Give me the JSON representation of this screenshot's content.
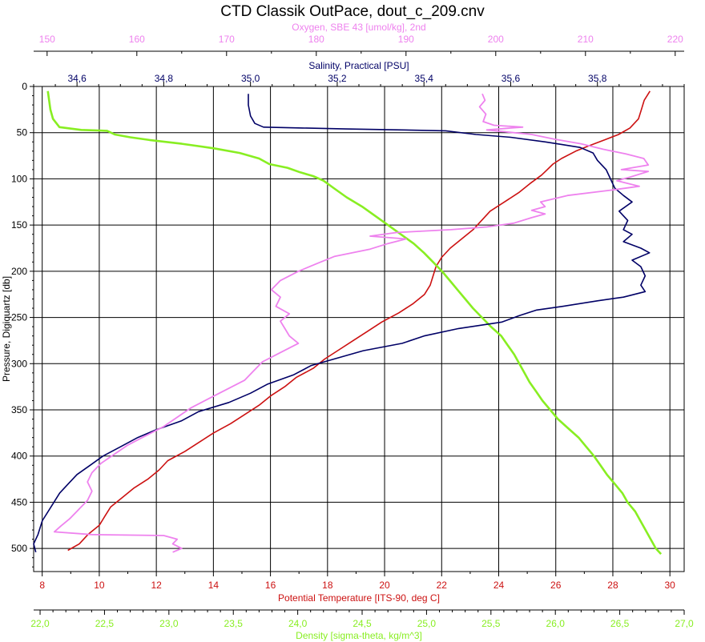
{
  "chart_data": {
    "type": "line",
    "title": "CTD Classik OutPace, dout_c_209.cnv",
    "grid": true,
    "colors": {
      "pressure": "#000000",
      "temperature": "#cc1111",
      "salinity": "#000066",
      "oxygen": "#ee82ee",
      "density": "#88ee22"
    },
    "axes": {
      "pressure": {
        "label": "Pressure, Digiquartz [db]",
        "range": [
          0,
          525
        ],
        "inverted": true,
        "ticks": [
          0,
          50,
          100,
          150,
          200,
          250,
          300,
          350,
          400,
          450,
          500
        ],
        "tick_labels": [
          "0",
          "50",
          "100",
          "150",
          "200",
          "250",
          "300",
          "350",
          "400",
          "450",
          "500"
        ]
      },
      "temperature": {
        "label": "Potential Temperature [ITS-90, deg C]",
        "range": [
          7.7,
          30.5
        ],
        "ticks": [
          8,
          10,
          12,
          14,
          16,
          18,
          20,
          22,
          24,
          26,
          28,
          30
        ],
        "tick_labels": [
          "8",
          "10",
          "12",
          "14",
          "16",
          "18",
          "20",
          "22",
          "24",
          "26",
          "28",
          "30"
        ]
      },
      "density": {
        "label": "Density [sigma-theta, kg/m^3]",
        "range": [
          21.95,
          27.0
        ],
        "ticks": [
          22.0,
          22.5,
          23.0,
          23.5,
          24.0,
          24.5,
          25.0,
          25.5,
          26.0,
          26.5,
          27.0
        ],
        "tick_labels": [
          "22,0",
          "22,5",
          "23,0",
          "23,5",
          "24,0",
          "24,5",
          "25,0",
          "25,5",
          "26,0",
          "26,5",
          "27,0"
        ]
      },
      "salinity": {
        "label": "Salinity, Practical [PSU]",
        "range": [
          34.5,
          36.0
        ],
        "ticks": [
          34.6,
          34.8,
          35.0,
          35.2,
          35.4,
          35.6,
          35.8
        ],
        "tick_labels": [
          "34,6",
          "34,8",
          "35,0",
          "35,2",
          "35,4",
          "35,6",
          "35,8"
        ]
      },
      "oxygen": {
        "label": "Oxygen, SBE 43 [umol/kg], 2nd",
        "range": [
          148.5,
          221.0
        ],
        "ticks": [
          150,
          160,
          170,
          180,
          190,
          200,
          210,
          220
        ],
        "tick_labels": [
          "150",
          "160",
          "170",
          "180",
          "190",
          "200",
          "210",
          "220"
        ]
      }
    },
    "series": [
      {
        "name": "Potential Temperature [ITS-90, deg C]",
        "axis": "temperature",
        "points": [
          [
            29.3,
            5
          ],
          [
            29.1,
            15
          ],
          [
            29.0,
            25
          ],
          [
            28.9,
            35
          ],
          [
            28.6,
            45
          ],
          [
            28.2,
            52
          ],
          [
            27.7,
            58
          ],
          [
            27.1,
            65
          ],
          [
            26.7,
            70
          ],
          [
            26.2,
            78
          ],
          [
            25.9,
            84
          ],
          [
            25.7,
            90
          ],
          [
            25.5,
            96
          ],
          [
            25.1,
            105
          ],
          [
            24.7,
            115
          ],
          [
            24.2,
            125
          ],
          [
            23.7,
            135
          ],
          [
            23.4,
            145
          ],
          [
            23.1,
            155
          ],
          [
            22.7,
            165
          ],
          [
            22.3,
            175
          ],
          [
            22.0,
            185
          ],
          [
            21.8,
            195
          ],
          [
            21.7,
            205
          ],
          [
            21.6,
            215
          ],
          [
            21.4,
            225
          ],
          [
            21.0,
            235
          ],
          [
            20.5,
            245
          ],
          [
            19.9,
            255
          ],
          [
            19.4,
            265
          ],
          [
            18.9,
            275
          ],
          [
            18.4,
            285
          ],
          [
            17.9,
            295
          ],
          [
            17.5,
            305
          ],
          [
            16.9,
            315
          ],
          [
            16.5,
            325
          ],
          [
            16.0,
            335
          ],
          [
            15.6,
            345
          ],
          [
            15.1,
            355
          ],
          [
            14.6,
            365
          ],
          [
            14.0,
            375
          ],
          [
            13.5,
            385
          ],
          [
            13.0,
            395
          ],
          [
            12.4,
            405
          ],
          [
            12.1,
            415
          ],
          [
            11.7,
            425
          ],
          [
            11.2,
            435
          ],
          [
            10.8,
            445
          ],
          [
            10.4,
            455
          ],
          [
            10.2,
            465
          ],
          [
            10.0,
            475
          ],
          [
            9.6,
            485
          ],
          [
            9.3,
            495
          ],
          [
            8.9,
            502
          ]
        ]
      },
      {
        "name": "Density [sigma-theta, kg/m^3]",
        "axis": "density",
        "points": [
          [
            22.06,
            5
          ],
          [
            22.07,
            15
          ],
          [
            22.08,
            25
          ],
          [
            22.1,
            35
          ],
          [
            22.15,
            44
          ],
          [
            22.32,
            47
          ],
          [
            22.52,
            48
          ],
          [
            22.58,
            52
          ],
          [
            22.7,
            55
          ],
          [
            22.85,
            58
          ],
          [
            23.1,
            62
          ],
          [
            23.35,
            67
          ],
          [
            23.55,
            72
          ],
          [
            23.7,
            78
          ],
          [
            23.78,
            84
          ],
          [
            23.92,
            88
          ],
          [
            24.02,
            93
          ],
          [
            24.12,
            97
          ],
          [
            24.2,
            102
          ],
          [
            24.28,
            110
          ],
          [
            24.38,
            120
          ],
          [
            24.5,
            130
          ],
          [
            24.6,
            140
          ],
          [
            24.7,
            150
          ],
          [
            24.8,
            160
          ],
          [
            24.9,
            170
          ],
          [
            24.98,
            180
          ],
          [
            25.05,
            190
          ],
          [
            25.12,
            200
          ],
          [
            25.18,
            210
          ],
          [
            25.24,
            220
          ],
          [
            25.3,
            230
          ],
          [
            25.36,
            240
          ],
          [
            25.43,
            250
          ],
          [
            25.5,
            260
          ],
          [
            25.58,
            270
          ],
          [
            25.63,
            280
          ],
          [
            25.68,
            290
          ],
          [
            25.72,
            300
          ],
          [
            25.76,
            310
          ],
          [
            25.8,
            320
          ],
          [
            25.85,
            330
          ],
          [
            25.9,
            340
          ],
          [
            25.96,
            350
          ],
          [
            26.02,
            360
          ],
          [
            26.1,
            370
          ],
          [
            26.18,
            380
          ],
          [
            26.24,
            390
          ],
          [
            26.3,
            400
          ],
          [
            26.35,
            410
          ],
          [
            26.4,
            420
          ],
          [
            26.46,
            430
          ],
          [
            26.52,
            440
          ],
          [
            26.56,
            450
          ],
          [
            26.62,
            460
          ],
          [
            26.66,
            470
          ],
          [
            26.7,
            480
          ],
          [
            26.74,
            490
          ],
          [
            26.78,
            500
          ],
          [
            26.82,
            506
          ]
        ]
      },
      {
        "name": "Salinity, Practical [PSU]",
        "axis": "salinity",
        "points": [
          [
            34.995,
            8
          ],
          [
            34.995,
            20
          ],
          [
            35.0,
            32
          ],
          [
            35.01,
            40
          ],
          [
            35.03,
            44
          ],
          [
            35.12,
            45
          ],
          [
            35.22,
            46
          ],
          [
            35.35,
            47
          ],
          [
            35.45,
            48
          ],
          [
            35.52,
            52
          ],
          [
            35.6,
            55
          ],
          [
            35.68,
            60
          ],
          [
            35.72,
            63
          ],
          [
            35.76,
            66
          ],
          [
            35.79,
            72
          ],
          [
            35.8,
            80
          ],
          [
            35.82,
            90
          ],
          [
            35.83,
            100
          ],
          [
            35.84,
            110
          ],
          [
            35.86,
            118
          ],
          [
            35.88,
            125
          ],
          [
            35.85,
            135
          ],
          [
            35.87,
            145
          ],
          [
            35.86,
            155
          ],
          [
            35.88,
            160
          ],
          [
            35.86,
            168
          ],
          [
            35.9,
            175
          ],
          [
            35.92,
            180
          ],
          [
            35.88,
            188
          ],
          [
            35.9,
            195
          ],
          [
            35.91,
            205
          ],
          [
            35.9,
            215
          ],
          [
            35.91,
            222
          ],
          [
            35.86,
            228
          ],
          [
            35.8,
            232
          ],
          [
            35.72,
            238
          ],
          [
            35.66,
            242
          ],
          [
            35.62,
            248
          ],
          [
            35.58,
            255
          ],
          [
            35.48,
            262
          ],
          [
            35.4,
            270
          ],
          [
            35.35,
            278
          ],
          [
            35.26,
            286
          ],
          [
            35.2,
            294
          ],
          [
            35.14,
            302
          ],
          [
            35.1,
            312
          ],
          [
            35.04,
            322
          ],
          [
            35.0,
            332
          ],
          [
            34.95,
            342
          ],
          [
            34.88,
            352
          ],
          [
            34.84,
            362
          ],
          [
            34.78,
            372
          ],
          [
            34.74,
            380
          ],
          [
            34.7,
            390
          ],
          [
            34.66,
            400
          ],
          [
            34.63,
            410
          ],
          [
            34.6,
            420
          ],
          [
            34.58,
            430
          ],
          [
            34.56,
            440
          ],
          [
            34.54,
            455
          ],
          [
            34.52,
            470
          ],
          [
            34.51,
            485
          ],
          [
            34.5,
            495
          ],
          [
            34.505,
            504
          ]
        ]
      },
      {
        "name": "Oxygen, SBE 43 [umol/kg], 2nd",
        "axis": "oxygen",
        "points": [
          [
            198.5,
            8
          ],
          [
            198.8,
            15
          ],
          [
            198.2,
            22
          ],
          [
            198.9,
            30
          ],
          [
            198.6,
            38
          ],
          [
            199.8,
            42
          ],
          [
            203.0,
            44
          ],
          [
            199.0,
            47
          ],
          [
            204.0,
            52
          ],
          [
            206.5,
            57
          ],
          [
            209.5,
            62
          ],
          [
            212.0,
            68
          ],
          [
            214.5,
            73
          ],
          [
            216.5,
            78
          ],
          [
            217.0,
            85
          ],
          [
            214.0,
            90
          ],
          [
            217.0,
            92
          ],
          [
            215.0,
            98
          ],
          [
            213.5,
            102
          ],
          [
            216.0,
            108
          ],
          [
            213.0,
            112
          ],
          [
            208.0,
            118
          ],
          [
            205.0,
            125
          ],
          [
            205.5,
            130
          ],
          [
            204.0,
            134
          ],
          [
            205.5,
            138
          ],
          [
            204.0,
            142
          ],
          [
            202.0,
            148
          ],
          [
            199.0,
            152
          ],
          [
            195.0,
            155
          ],
          [
            189.0,
            158
          ],
          [
            186.0,
            162
          ],
          [
            190.0,
            165
          ],
          [
            188.0,
            170
          ],
          [
            186.0,
            176
          ],
          [
            182.0,
            184
          ],
          [
            180.0,
            192
          ],
          [
            178.0,
            200
          ],
          [
            176.0,
            210
          ],
          [
            175.0,
            220
          ],
          [
            176.0,
            228
          ],
          [
            175.5,
            238
          ],
          [
            177.0,
            246
          ],
          [
            176.0,
            254
          ],
          [
            176.5,
            262
          ],
          [
            177.0,
            270
          ],
          [
            178.0,
            278
          ],
          [
            176.0,
            288
          ],
          [
            174.0,
            298
          ],
          [
            173.0,
            308
          ],
          [
            172.0,
            318
          ],
          [
            170.0,
            328
          ],
          [
            168.0,
            338
          ],
          [
            166.0,
            348
          ],
          [
            164.5,
            358
          ],
          [
            163.0,
            368
          ],
          [
            161.0,
            378
          ],
          [
            159.0,
            388
          ],
          [
            157.5,
            398
          ],
          [
            156.0,
            408
          ],
          [
            155.0,
            418
          ],
          [
            154.5,
            428
          ],
          [
            155.0,
            438
          ],
          [
            154.5,
            448
          ],
          [
            153.5,
            458
          ],
          [
            152.5,
            468
          ],
          [
            151.5,
            476
          ],
          [
            150.8,
            482
          ],
          [
            155.0,
            485
          ],
          [
            163.0,
            486
          ],
          [
            164.5,
            490
          ],
          [
            164.0,
            495
          ],
          [
            165.0,
            500
          ],
          [
            164.0,
            504
          ]
        ]
      }
    ]
  }
}
